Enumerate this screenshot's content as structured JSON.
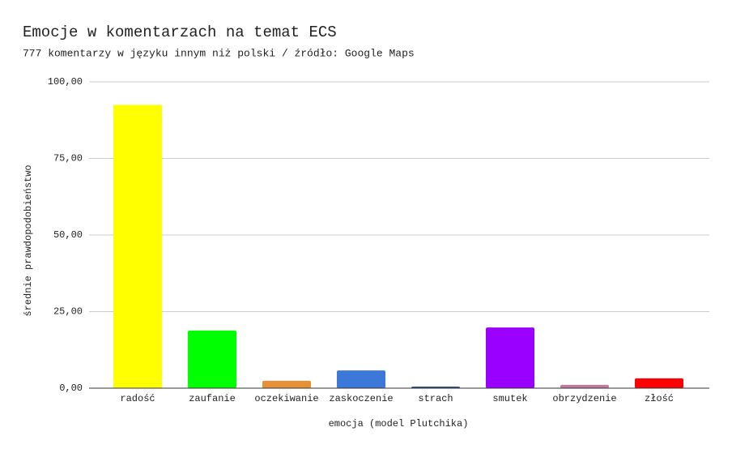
{
  "chart_data": {
    "type": "bar",
    "title": "Emocje w komentarzach na temat ECS",
    "subtitle": "777 komentarzy w języku innym niż polski / źródło: Google Maps",
    "x_label": "emocja (model Plutchika)",
    "y_label": "średnie prawdopodobieństwo",
    "categories": [
      "radość",
      "zaufanie",
      "oczekiwanie",
      "zaskoczenie",
      "strach",
      "smutek",
      "obrzydzenie",
      "złość"
    ],
    "values": [
      92.5,
      18.8,
      2.4,
      5.8,
      0.5,
      19.8,
      1.1,
      3.2
    ],
    "colors": [
      "#ffff00",
      "#00ff00",
      "#e69138",
      "#3c78d8",
      "#1c4587",
      "#9900ff",
      "#c27ba0",
      "#ff0000"
    ],
    "ylim": [
      0,
      100
    ],
    "yticks": [
      {
        "value": 0,
        "label": "0,00"
      },
      {
        "value": 25,
        "label": "25,00"
      },
      {
        "value": 50,
        "label": "50,00"
      },
      {
        "value": 75,
        "label": "75,00"
      },
      {
        "value": 100,
        "label": "100,00"
      }
    ],
    "grid": true
  }
}
